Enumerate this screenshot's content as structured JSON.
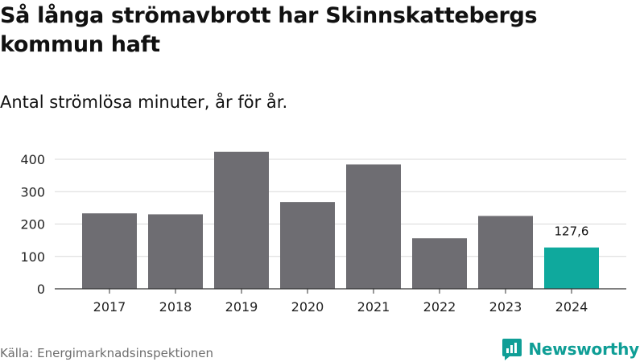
{
  "title": "Så långa strömavbrott har Skinnskattebergs kommun haft",
  "subtitle": "Antal strömlösa minuter, år för år.",
  "source": "Källa: Energimarknadsinspektionen",
  "brand": {
    "name": "Newsworthy",
    "icon": "newsworthy-logo-icon"
  },
  "colors": {
    "bar": "#6e6d72",
    "highlight": "#0fa99d",
    "grid": "#d9d9d9",
    "axis": "#333333"
  },
  "chart_data": {
    "type": "bar",
    "categories": [
      "2017",
      "2018",
      "2019",
      "2020",
      "2021",
      "2022",
      "2023",
      "2024"
    ],
    "values": [
      233,
      230,
      423,
      268,
      384,
      156,
      225,
      127.6
    ],
    "highlight_index": 7,
    "value_labels": {
      "7": "127,6"
    },
    "yticks": [
      0,
      100,
      200,
      300,
      400
    ],
    "ylim": [
      0,
      430
    ],
    "grid": true,
    "xlabel": "",
    "ylabel": ""
  }
}
